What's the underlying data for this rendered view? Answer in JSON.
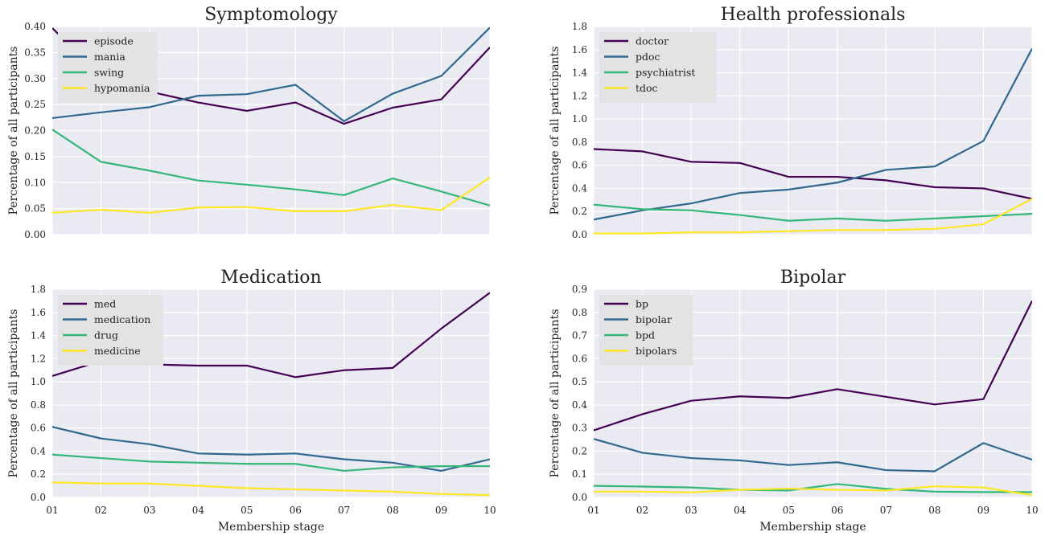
{
  "palette": [
    "#440154",
    "#31688e",
    "#35b779",
    "#fde725"
  ],
  "chart_data": [
    {
      "type": "line",
      "title": "Symptomology",
      "xlabel": "",
      "ylabel": "Percentage of all participants",
      "categories": [
        "01",
        "02",
        "03",
        "04",
        "05",
        "06",
        "07",
        "08",
        "09",
        "10"
      ],
      "ylim": [
        0,
        0.4
      ],
      "yticks": [
        "0.00",
        "0.05",
        "0.10",
        "0.15",
        "0.20",
        "0.25",
        "0.30",
        "0.35",
        "0.40"
      ],
      "show_xticks": false,
      "legend": "top-left",
      "grid": true,
      "series": [
        {
          "name": "episode",
          "values": [
            0.397,
            0.305,
            0.275,
            0.254,
            0.238,
            0.254,
            0.213,
            0.244,
            0.26,
            0.36
          ]
        },
        {
          "name": "mania",
          "values": [
            0.224,
            0.235,
            0.245,
            0.267,
            0.27,
            0.288,
            0.218,
            0.271,
            0.305,
            0.398
          ]
        },
        {
          "name": "swing",
          "values": [
            0.202,
            0.14,
            0.123,
            0.104,
            0.096,
            0.087,
            0.076,
            0.108,
            0.083,
            0.056
          ]
        },
        {
          "name": "hypomania",
          "values": [
            0.042,
            0.048,
            0.042,
            0.052,
            0.053,
            0.045,
            0.045,
            0.057,
            0.047,
            0.11
          ]
        }
      ]
    },
    {
      "type": "line",
      "title": "Health professionals",
      "xlabel": "",
      "ylabel": "Percentage of all participants",
      "categories": [
        "01",
        "02",
        "03",
        "04",
        "05",
        "06",
        "07",
        "08",
        "09",
        "10"
      ],
      "ylim": [
        0,
        1.8
      ],
      "yticks": [
        "0.0",
        "0.2",
        "0.4",
        "0.6",
        "0.8",
        "1.0",
        "1.2",
        "1.4",
        "1.6",
        "1.8"
      ],
      "show_xticks": false,
      "legend": "top-left",
      "grid": true,
      "series": [
        {
          "name": "doctor",
          "values": [
            0.74,
            0.72,
            0.63,
            0.62,
            0.5,
            0.5,
            0.47,
            0.41,
            0.4,
            0.31
          ]
        },
        {
          "name": "pdoc",
          "values": [
            0.13,
            0.21,
            0.27,
            0.36,
            0.39,
            0.45,
            0.56,
            0.59,
            0.81,
            1.61
          ]
        },
        {
          "name": "psychiatrist",
          "values": [
            0.26,
            0.22,
            0.21,
            0.17,
            0.12,
            0.14,
            0.12,
            0.14,
            0.16,
            0.18
          ]
        },
        {
          "name": "tdoc",
          "values": [
            0.01,
            0.01,
            0.02,
            0.02,
            0.03,
            0.04,
            0.04,
            0.05,
            0.09,
            0.31
          ]
        }
      ]
    },
    {
      "type": "line",
      "title": "Medication",
      "xlabel": "Membership stage",
      "ylabel": "Percentage of all participants",
      "categories": [
        "01",
        "02",
        "03",
        "04",
        "05",
        "06",
        "07",
        "08",
        "09",
        "10"
      ],
      "ylim": [
        0,
        1.8
      ],
      "yticks": [
        "0.0",
        "0.2",
        "0.4",
        "0.6",
        "0.8",
        "1.0",
        "1.2",
        "1.4",
        "1.6",
        "1.8"
      ],
      "show_xticks": true,
      "legend": "top-left",
      "grid": true,
      "series": [
        {
          "name": "med",
          "values": [
            1.05,
            1.18,
            1.15,
            1.14,
            1.14,
            1.04,
            1.1,
            1.12,
            1.46,
            1.77
          ]
        },
        {
          "name": "medication",
          "values": [
            0.61,
            0.51,
            0.46,
            0.38,
            0.37,
            0.38,
            0.33,
            0.3,
            0.23,
            0.33
          ]
        },
        {
          "name": "drug",
          "values": [
            0.37,
            0.34,
            0.31,
            0.3,
            0.29,
            0.29,
            0.23,
            0.26,
            0.27,
            0.27
          ]
        },
        {
          "name": "medicine",
          "values": [
            0.13,
            0.12,
            0.12,
            0.1,
            0.08,
            0.07,
            0.06,
            0.05,
            0.03,
            0.02
          ]
        }
      ]
    },
    {
      "type": "line",
      "title": "Bipolar",
      "xlabel": "Membership stage",
      "ylabel": "Percentage of all participants",
      "categories": [
        "01",
        "02",
        "03",
        "04",
        "05",
        "06",
        "07",
        "08",
        "09",
        "10"
      ],
      "ylim": [
        0,
        0.9
      ],
      "yticks": [
        "0.0",
        "0.1",
        "0.2",
        "0.3",
        "0.4",
        "0.5",
        "0.6",
        "0.7",
        "0.8",
        "0.9"
      ],
      "show_xticks": true,
      "legend": "top-left",
      "grid": true,
      "series": [
        {
          "name": "bp",
          "values": [
            0.29,
            0.36,
            0.418,
            0.437,
            0.43,
            0.468,
            0.435,
            0.402,
            0.425,
            0.85
          ]
        },
        {
          "name": "bipolar",
          "values": [
            0.253,
            0.193,
            0.17,
            0.16,
            0.14,
            0.152,
            0.118,
            0.113,
            0.235,
            0.163
          ]
        },
        {
          "name": "bpd",
          "values": [
            0.05,
            0.047,
            0.043,
            0.033,
            0.03,
            0.058,
            0.037,
            0.025,
            0.023,
            0.023
          ]
        },
        {
          "name": "bipolars",
          "values": [
            0.025,
            0.025,
            0.022,
            0.033,
            0.038,
            0.033,
            0.03,
            0.048,
            0.043,
            0.01
          ]
        }
      ]
    }
  ]
}
